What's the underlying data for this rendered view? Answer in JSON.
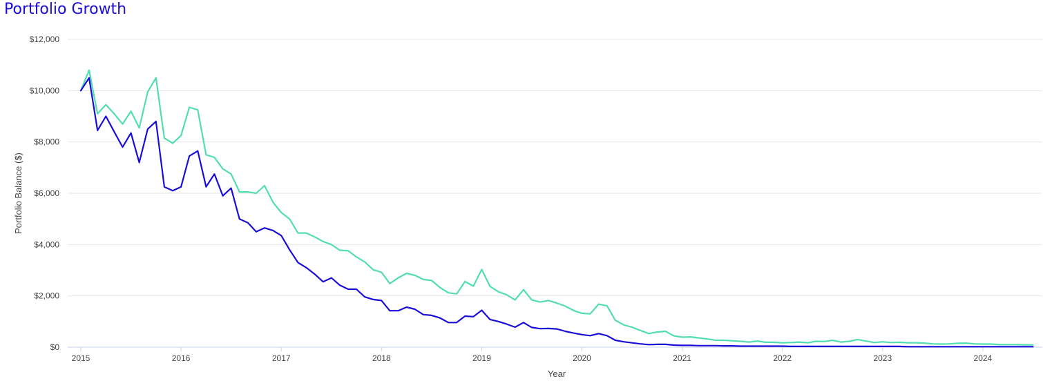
{
  "title": "Portfolio Growth",
  "colors": {
    "title": "#1a0dd8",
    "grid": "#e6e6e6",
    "axis": "#c8d2e6",
    "tick_text": "#444444"
  },
  "chart_data": {
    "type": "line",
    "xlabel": "Year",
    "ylabel": "Portfolio Balance ($)",
    "xlim": [
      2015,
      2024.5
    ],
    "ylim": [
      0,
      12000
    ],
    "grid": true,
    "x_ticks": [
      2015,
      2016,
      2017,
      2018,
      2019,
      2020,
      2021,
      2022,
      2023,
      2024
    ],
    "x_tick_labels": [
      "2015",
      "2016",
      "2017",
      "2018",
      "2019",
      "2020",
      "2021",
      "2022",
      "2023",
      "2024"
    ],
    "y_ticks": [
      0,
      2000,
      4000,
      6000,
      8000,
      10000,
      12000
    ],
    "y_tick_labels": [
      "$0",
      "$2,000",
      "$4,000",
      "$6,000",
      "$8,000",
      "$10,000",
      "$12,000"
    ],
    "x": [
      2015.0,
      2015.083,
      2015.167,
      2015.25,
      2015.333,
      2015.417,
      2015.5,
      2015.583,
      2015.667,
      2015.75,
      2015.833,
      2015.917,
      2016.0,
      2016.083,
      2016.167,
      2016.25,
      2016.333,
      2016.417,
      2016.5,
      2016.583,
      2016.667,
      2016.75,
      2016.833,
      2016.917,
      2017.0,
      2017.083,
      2017.167,
      2017.25,
      2017.333,
      2017.417,
      2017.5,
      2017.583,
      2017.667,
      2017.75,
      2017.833,
      2017.917,
      2018.0,
      2018.083,
      2018.167,
      2018.25,
      2018.333,
      2018.417,
      2018.5,
      2018.583,
      2018.667,
      2018.75,
      2018.833,
      2018.917,
      2019.0,
      2019.083,
      2019.167,
      2019.25,
      2019.333,
      2019.417,
      2019.5,
      2019.583,
      2019.667,
      2019.75,
      2019.833,
      2019.917,
      2020.0,
      2020.083,
      2020.167,
      2020.25,
      2020.333,
      2020.417,
      2020.5,
      2020.583,
      2020.667,
      2020.75,
      2020.833,
      2020.917,
      2021.0,
      2021.083,
      2021.167,
      2021.25,
      2021.333,
      2021.417,
      2021.5,
      2021.583,
      2021.667,
      2021.75,
      2021.833,
      2021.917,
      2022.0,
      2022.083,
      2022.167,
      2022.25,
      2022.333,
      2022.417,
      2022.5,
      2022.583,
      2022.667,
      2022.75,
      2022.833,
      2022.917,
      2023.0,
      2023.083,
      2023.167,
      2023.25,
      2023.333,
      2023.417,
      2023.5,
      2023.583,
      2023.667,
      2023.75,
      2023.833,
      2023.917,
      2024.0,
      2024.083,
      2024.167,
      2024.25,
      2024.333,
      2024.417,
      2024.5
    ],
    "series": [
      {
        "color": "#52ddb0",
        "values": [
          10000,
          10800,
          9100,
          9450,
          9100,
          8700,
          9200,
          8550,
          9950,
          10500,
          8150,
          7950,
          8250,
          9350,
          9250,
          7500,
          7400,
          6950,
          6750,
          6050,
          6050,
          6000,
          6300,
          5650,
          5250,
          5000,
          4450,
          4450,
          4300,
          4120,
          4000,
          3780,
          3760,
          3520,
          3320,
          3020,
          2920,
          2480,
          2700,
          2880,
          2800,
          2640,
          2600,
          2330,
          2120,
          2080,
          2560,
          2380,
          3030,
          2370,
          2160,
          2040,
          1840,
          2240,
          1840,
          1760,
          1820,
          1720,
          1600,
          1430,
          1320,
          1300,
          1680,
          1610,
          1050,
          870,
          780,
          650,
          530,
          590,
          620,
          440,
          390,
          400,
          360,
          320,
          270,
          270,
          250,
          230,
          200,
          240,
          190,
          190,
          170,
          180,
          200,
          170,
          230,
          220,
          270,
          200,
          230,
          300,
          240,
          180,
          210,
          180,
          190,
          170,
          170,
          160,
          130,
          120,
          130,
          150,
          160,
          130,
          120,
          120,
          100,
          100,
          100,
          90,
          90
        ]
      },
      {
        "color": "#1a0dd8",
        "values": [
          10000,
          10500,
          8450,
          9000,
          8400,
          7800,
          8350,
          7200,
          8500,
          8800,
          6250,
          6100,
          6250,
          7450,
          7650,
          6250,
          6750,
          5900,
          6200,
          5000,
          4850,
          4500,
          4650,
          4550,
          4350,
          3800,
          3300,
          3100,
          2850,
          2550,
          2700,
          2420,
          2260,
          2260,
          1960,
          1860,
          1820,
          1420,
          1420,
          1560,
          1480,
          1270,
          1240,
          1140,
          960,
          960,
          1210,
          1190,
          1440,
          1080,
          1000,
          900,
          780,
          960,
          770,
          720,
          730,
          710,
          620,
          550,
          490,
          450,
          530,
          450,
          270,
          210,
          170,
          130,
          100,
          110,
          110,
          80,
          70,
          70,
          60,
          60,
          60,
          50,
          50,
          40,
          40,
          40,
          40,
          40,
          40,
          30,
          30,
          30,
          30,
          30,
          30,
          30,
          30,
          30,
          30,
          30,
          30,
          30,
          30,
          20,
          20,
          20,
          20,
          20,
          20,
          20,
          20,
          20,
          20,
          20,
          20,
          20,
          20,
          20,
          20
        ]
      }
    ]
  }
}
